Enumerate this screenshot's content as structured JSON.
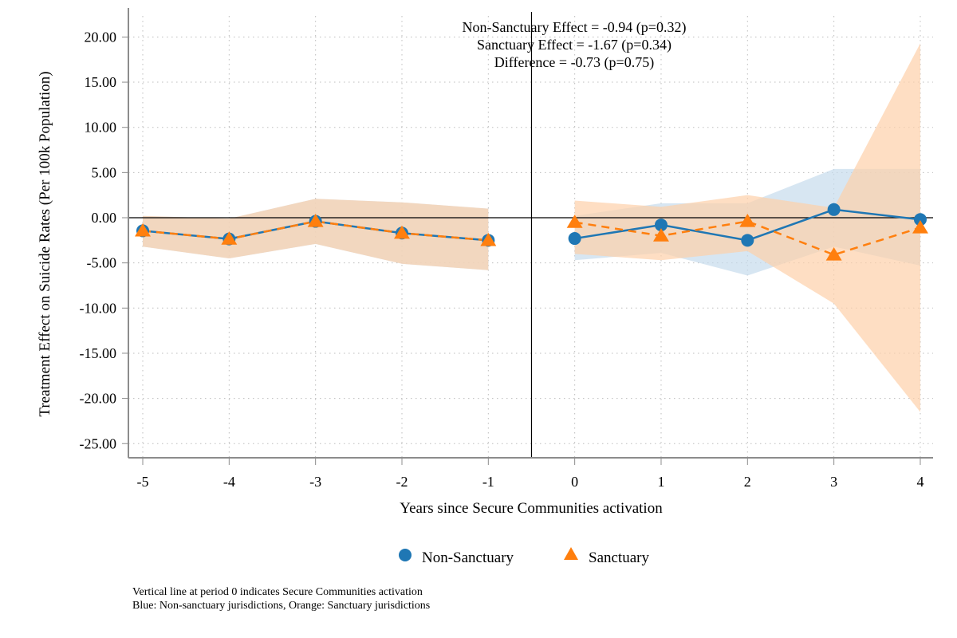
{
  "chart_data": {
    "type": "line",
    "title": "",
    "xlabel": "Years since Secure Communities activation",
    "ylabel": "Treatment Effect on Suicide Rates (Per 100k Population)",
    "x": [
      -5,
      -4,
      -3,
      -2,
      -1,
      0,
      1,
      2,
      3,
      4
    ],
    "xticks": [
      "-5",
      "-4",
      "-3",
      "-2",
      "-1",
      "0",
      "1",
      "2",
      "3",
      "4"
    ],
    "yticks": [
      20,
      15,
      10,
      5,
      0,
      -5,
      -10,
      -15,
      -20,
      -25
    ],
    "ytick_labels": [
      "20.00",
      "15.00",
      "10.00",
      "5.00",
      "0.00",
      "-5.00",
      "-10.00",
      "-15.00",
      "-20.00",
      "-25.00"
    ],
    "xlim": [
      -5.17,
      4.15
    ],
    "ylim": [
      -26.5,
      22.0
    ],
    "grid": true,
    "hline": 0,
    "vline": -0.5,
    "series": [
      {
        "name": "Non-Sanctuary",
        "marker": "circle",
        "line_style": "solid",
        "color": "#1f77b4",
        "band_color": "#c6dbec",
        "values": [
          -1.45,
          -2.35,
          -0.4,
          -1.7,
          -2.5,
          -2.3,
          -0.8,
          -2.5,
          0.9,
          -0.2
        ],
        "ci_low": [
          -3.2,
          -4.5,
          -2.9,
          -5.1,
          -5.8,
          -4.7,
          -3.9,
          -6.4,
          -3.2,
          -5.3
        ],
        "ci_high": [
          0.2,
          -0.1,
          2.1,
          1.7,
          1.0,
          0.2,
          1.6,
          1.6,
          5.4,
          5.4
        ]
      },
      {
        "name": "Sanctuary",
        "marker": "triangle",
        "line_style": "dashed",
        "color": "#ff7f0e",
        "band_color": "#fdd0aa",
        "values": [
          -1.45,
          -2.35,
          -0.4,
          -1.7,
          -2.5,
          -0.5,
          -2.0,
          -0.4,
          -4.1,
          -1.1
        ],
        "ci_low": [
          -3.2,
          -4.5,
          -2.9,
          -5.1,
          -5.8,
          -4.0,
          -4.7,
          -3.7,
          -9.5,
          -21.5
        ],
        "ci_high": [
          0.2,
          -0.1,
          2.1,
          1.7,
          1.0,
          1.9,
          1.2,
          2.5,
          1.1,
          19.3
        ]
      }
    ],
    "annotations": [
      "Non-Sanctuary Effect = -0.94 (p=0.32)",
      "Sanctuary Effect = -1.67 (p=0.34)",
      "Difference = -0.73 (p=0.75)"
    ],
    "legend": {
      "placement": "bottom-center",
      "entries": [
        "Non-Sanctuary",
        "Sanctuary"
      ]
    },
    "notes": [
      "Vertical line at period 0 indicates Secure Communities activation",
      "Blue: Non-sanctuary jurisdictions, Orange: Sanctuary jurisdictions"
    ]
  }
}
